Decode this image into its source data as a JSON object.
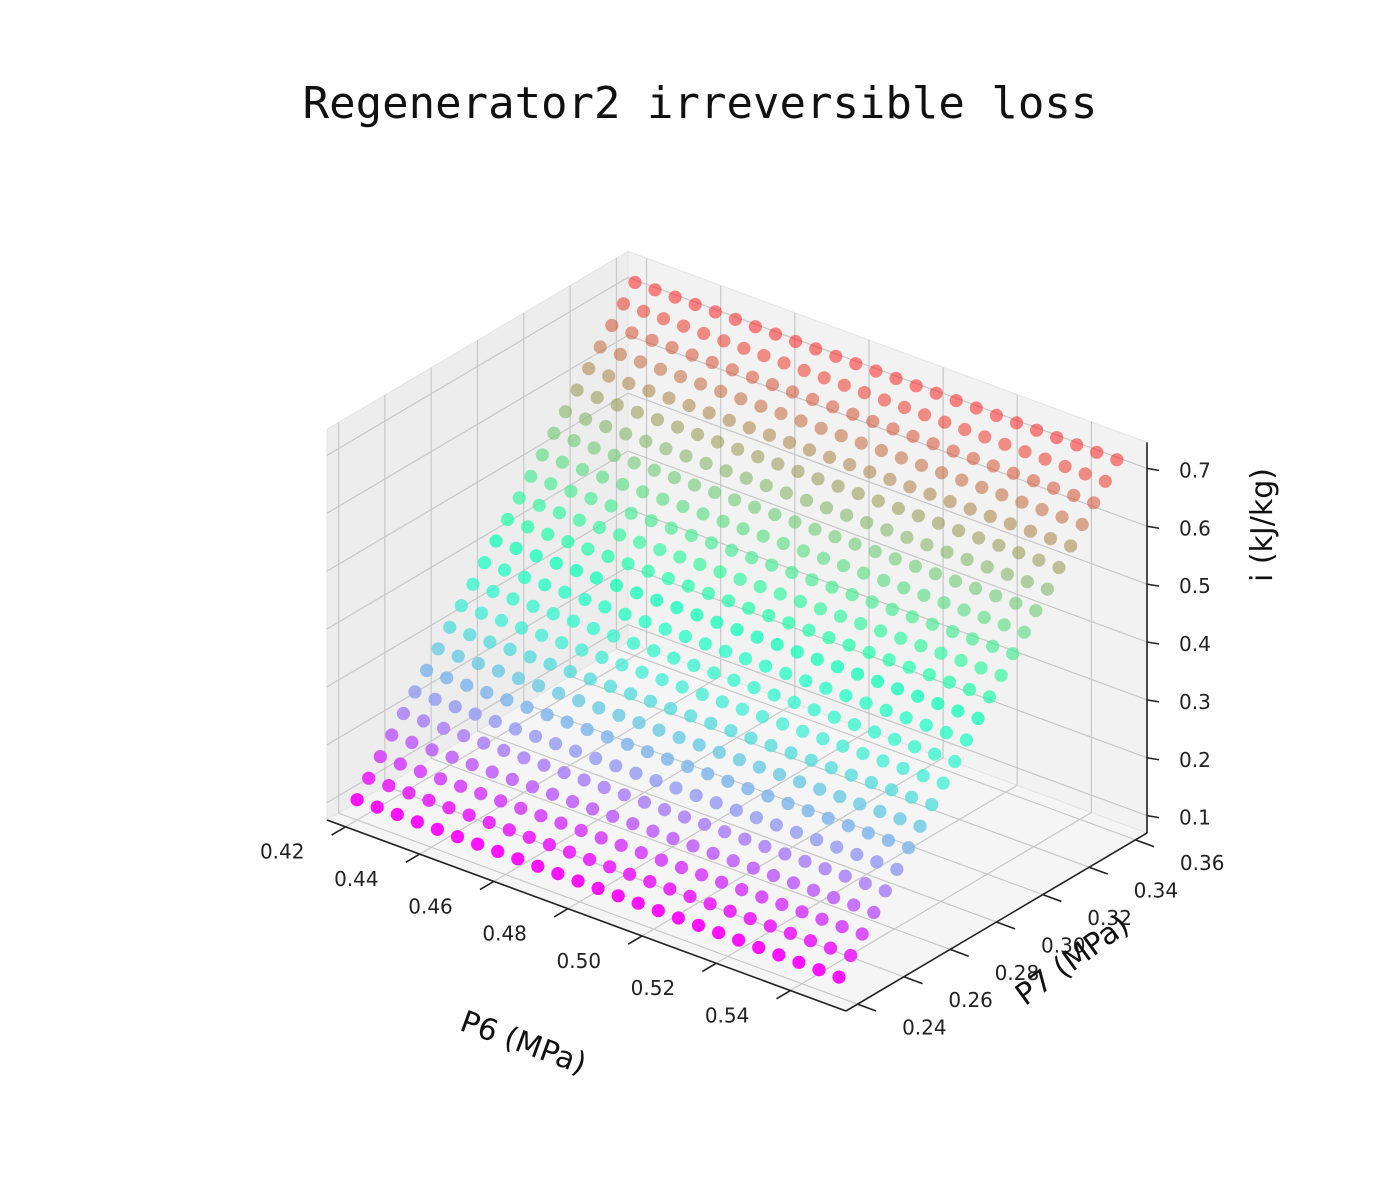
{
  "chart_data": {
    "type": "scatter3d",
    "title": "Regenerator2 irreversible loss",
    "xlabel": "P6 (MPa)",
    "ylabel": "P7 (MPa)",
    "zlabel": "i (kJ/kg)",
    "xlim": [
      0.415,
      0.555
    ],
    "ylim": [
      0.235,
      0.365
    ],
    "zlim": [
      0.07,
      0.745
    ],
    "x_ticks": [
      "0.42",
      "0.44",
      "0.46",
      "0.48",
      "0.50",
      "0.52",
      "0.54"
    ],
    "y_ticks": [
      "0.24",
      "0.26",
      "0.28",
      "0.30",
      "0.32",
      "0.34",
      "0.36"
    ],
    "z_ticks": [
      "0.1",
      "0.2",
      "0.3",
      "0.4",
      "0.5",
      "0.6",
      "0.7"
    ],
    "grid": true,
    "colormap": "rainbow",
    "colors": {
      "pane": "#f2f2f2",
      "grid": "#c8c8c8",
      "axis": "#222222"
    },
    "series": [
      {
        "x_range": [
          0.42,
          0.55
        ],
        "y_range": [
          0.24,
          0.36
        ],
        "n_x": 25,
        "n_y": 25,
        "z_at_min_y": 0.105,
        "z_at_max_y": 0.715,
        "z_trend_along_x": "nearly constant"
      }
    ]
  }
}
